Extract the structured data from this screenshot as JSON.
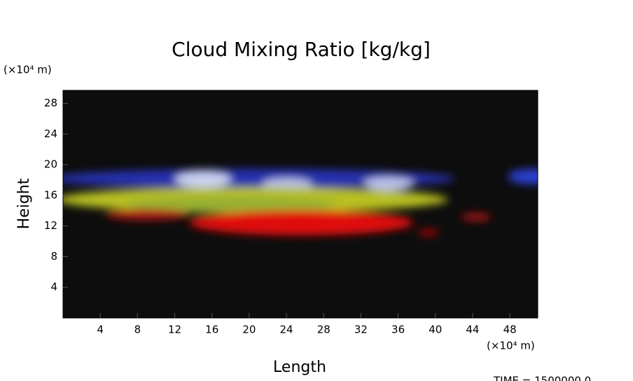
{
  "chart_data": {
    "type": "image",
    "title": "Cloud Mixing Ratio [kg/kg]",
    "x_label": "Length",
    "y_label": "Height",
    "x_unit": "(×10⁴ m)",
    "y_unit": "(×10⁴ m)",
    "xlim": [
      0,
      51
    ],
    "ylim": [
      0,
      29.7
    ],
    "xticks": [
      4,
      8,
      12,
      16,
      20,
      24,
      28,
      32,
      36,
      40,
      44,
      48
    ],
    "yticks": [
      4,
      8,
      12,
      16,
      20,
      24,
      28
    ],
    "background": "#0d0d0d",
    "footer": "TIME = 1500000.0"
  }
}
